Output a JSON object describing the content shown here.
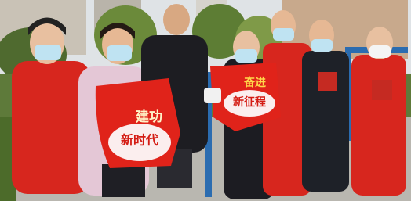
{
  "signs": [
    {
      "lines": [
        "建功",
        "新时代"
      ]
    },
    {
      "lines": [
        "奋进",
        "新征程"
      ]
    }
  ]
}
